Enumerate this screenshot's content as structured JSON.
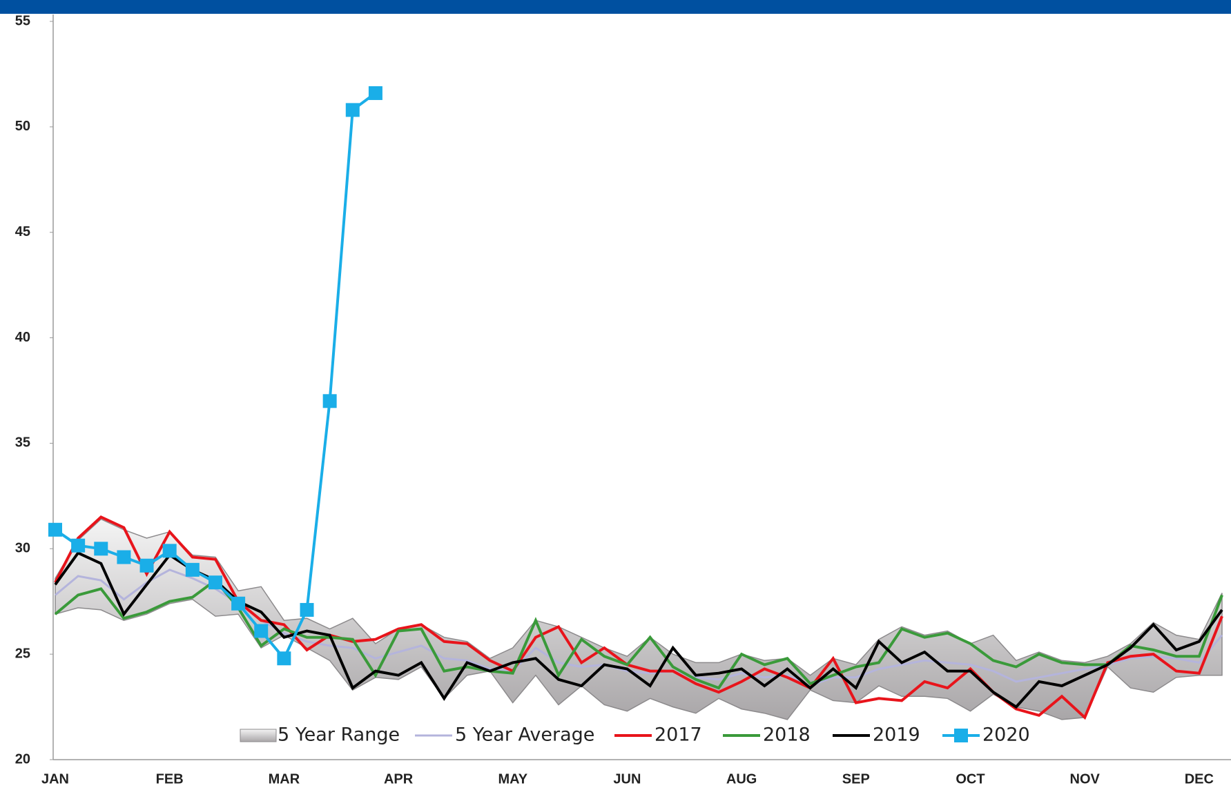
{
  "chart_data": {
    "type": "line",
    "categories": [
      "JAN",
      null,
      null,
      null,
      null,
      "FEB",
      null,
      null,
      null,
      null,
      "MAR",
      null,
      null,
      null,
      null,
      "APR",
      null,
      null,
      null,
      null,
      "MAY",
      null,
      null,
      null,
      null,
      "JUN",
      null,
      null,
      null,
      null,
      "AUG",
      null,
      null,
      null,
      null,
      "SEP",
      null,
      null,
      null,
      null,
      "OCT",
      null,
      null,
      null,
      null,
      "NOV",
      null,
      null,
      null,
      null,
      "DEC",
      null
    ],
    "ylim": [
      20,
      55
    ],
    "yticks": [
      20,
      25,
      30,
      35,
      40,
      45,
      50,
      55
    ],
    "grid": false,
    "legend": "bottom",
    "series": [
      {
        "name": "5 Year Range",
        "color": "#b9b6b8",
        "low": [
          26.9,
          27.2,
          27.1,
          26.6,
          26.9,
          27.4,
          27.6,
          26.8,
          26.9,
          25.3,
          25.9,
          25.3,
          24.7,
          23.3,
          23.9,
          23.8,
          24.4,
          22.9,
          24.0,
          24.2,
          22.7,
          24.0,
          22.6,
          23.5,
          22.6,
          22.3,
          22.9,
          22.5,
          22.2,
          22.9,
          22.4,
          22.2,
          21.9,
          23.3,
          22.8,
          22.7,
          23.5,
          23.0,
          23.0,
          22.9,
          22.3,
          23.1,
          22.5,
          22.3,
          21.9,
          22.0,
          24.4,
          23.4,
          23.2,
          23.9,
          24.0,
          24.0
        ],
        "high": [
          28.6,
          30.4,
          31.4,
          30.9,
          30.5,
          30.8,
          29.7,
          29.6,
          28.0,
          28.2,
          26.6,
          26.7,
          26.2,
          26.7,
          25.5,
          26.2,
          26.4,
          25.8,
          25.6,
          24.8,
          25.3,
          26.6,
          26.3,
          25.8,
          25.3,
          24.9,
          25.8,
          25.0,
          24.6,
          24.6,
          25.0,
          24.7,
          24.8,
          24.0,
          24.8,
          24.5,
          25.7,
          26.3,
          25.9,
          26.1,
          25.5,
          25.9,
          24.7,
          25.1,
          24.7,
          24.6,
          24.9,
          25.5,
          26.5,
          25.9,
          25.7,
          27.9
        ]
      },
      {
        "name": "5 Year Average",
        "color": "#b4b4dc",
        "values": [
          27.8,
          28.7,
          28.5,
          27.6,
          28.4,
          29.0,
          28.6,
          28.1,
          27.4,
          26.6,
          26.0,
          25.6,
          25.4,
          25.3,
          24.8,
          25.1,
          25.4,
          24.8,
          24.7,
          24.3,
          24.2,
          25.3,
          24.6,
          24.4,
          24.5,
          24.2,
          24.1,
          24.2,
          23.9,
          23.8,
          24.1,
          23.9,
          24.0,
          23.5,
          23.9,
          23.9,
          24.3,
          24.5,
          24.7,
          24.6,
          24.5,
          24.2,
          23.7,
          23.9,
          24.1,
          24.3,
          24.5,
          24.8,
          24.9,
          24.8,
          24.6,
          25.9
        ]
      },
      {
        "name": "2017",
        "color": "#e8141b",
        "values": [
          28.4,
          30.5,
          31.5,
          31.0,
          28.8,
          30.8,
          29.6,
          29.5,
          27.5,
          26.6,
          26.4,
          25.2,
          25.9,
          25.6,
          25.7,
          26.2,
          26.4,
          25.6,
          25.5,
          24.7,
          24.2,
          25.8,
          26.3,
          24.6,
          25.3,
          24.5,
          24.2,
          24.2,
          23.6,
          23.2,
          23.7,
          24.3,
          23.9,
          23.4,
          24.8,
          22.7,
          22.9,
          22.8,
          23.7,
          23.4,
          24.3,
          23.2,
          22.4,
          22.1,
          23.0,
          22.0,
          24.6,
          24.9,
          25.0,
          24.2,
          24.1,
          26.8
        ]
      },
      {
        "name": "2018",
        "color": "#3a9a3a",
        "values": [
          26.9,
          27.8,
          28.1,
          26.7,
          27.0,
          27.5,
          27.7,
          28.5,
          27.2,
          25.4,
          26.2,
          25.8,
          25.8,
          25.7,
          24.0,
          26.1,
          26.2,
          24.2,
          24.4,
          24.2,
          24.1,
          26.6,
          24.0,
          25.7,
          24.9,
          24.5,
          25.8,
          24.4,
          23.8,
          23.4,
          25.0,
          24.5,
          24.8,
          23.6,
          24.0,
          24.4,
          24.6,
          26.2,
          25.8,
          26.0,
          25.5,
          24.7,
          24.4,
          25.0,
          24.6,
          24.5,
          24.5,
          25.4,
          25.2,
          24.9,
          24.9,
          27.8
        ]
      },
      {
        "name": "2019",
        "color": "#000000",
        "values": [
          28.3,
          29.8,
          29.3,
          26.9,
          28.3,
          29.7,
          29.0,
          28.5,
          27.5,
          27.0,
          25.8,
          26.1,
          25.9,
          23.4,
          24.2,
          24.0,
          24.6,
          22.9,
          24.6,
          24.2,
          24.6,
          24.8,
          23.8,
          23.5,
          24.5,
          24.3,
          23.5,
          25.3,
          24.0,
          24.1,
          24.3,
          23.5,
          24.3,
          23.4,
          24.3,
          23.4,
          25.6,
          24.6,
          25.1,
          24.2,
          24.2,
          23.2,
          22.5,
          23.7,
          23.5,
          24.0,
          24.5,
          25.3,
          26.4,
          25.2,
          25.6,
          27.1
        ]
      },
      {
        "name": "2020",
        "color": "#1aaee8",
        "marker": "square",
        "values": [
          30.9,
          30.15,
          30.0,
          29.6,
          29.2,
          29.9,
          29.0,
          28.4,
          27.4,
          26.1,
          24.8,
          27.1,
          37.0,
          50.8,
          51.6,
          null,
          null,
          null,
          null,
          null,
          null,
          null,
          null,
          null,
          null,
          null,
          null,
          null,
          null,
          null,
          null,
          null,
          null,
          null,
          null,
          null,
          null,
          null,
          null,
          null,
          null,
          null,
          null,
          null,
          null,
          null,
          null,
          null,
          null,
          null,
          null,
          null
        ]
      }
    ]
  }
}
